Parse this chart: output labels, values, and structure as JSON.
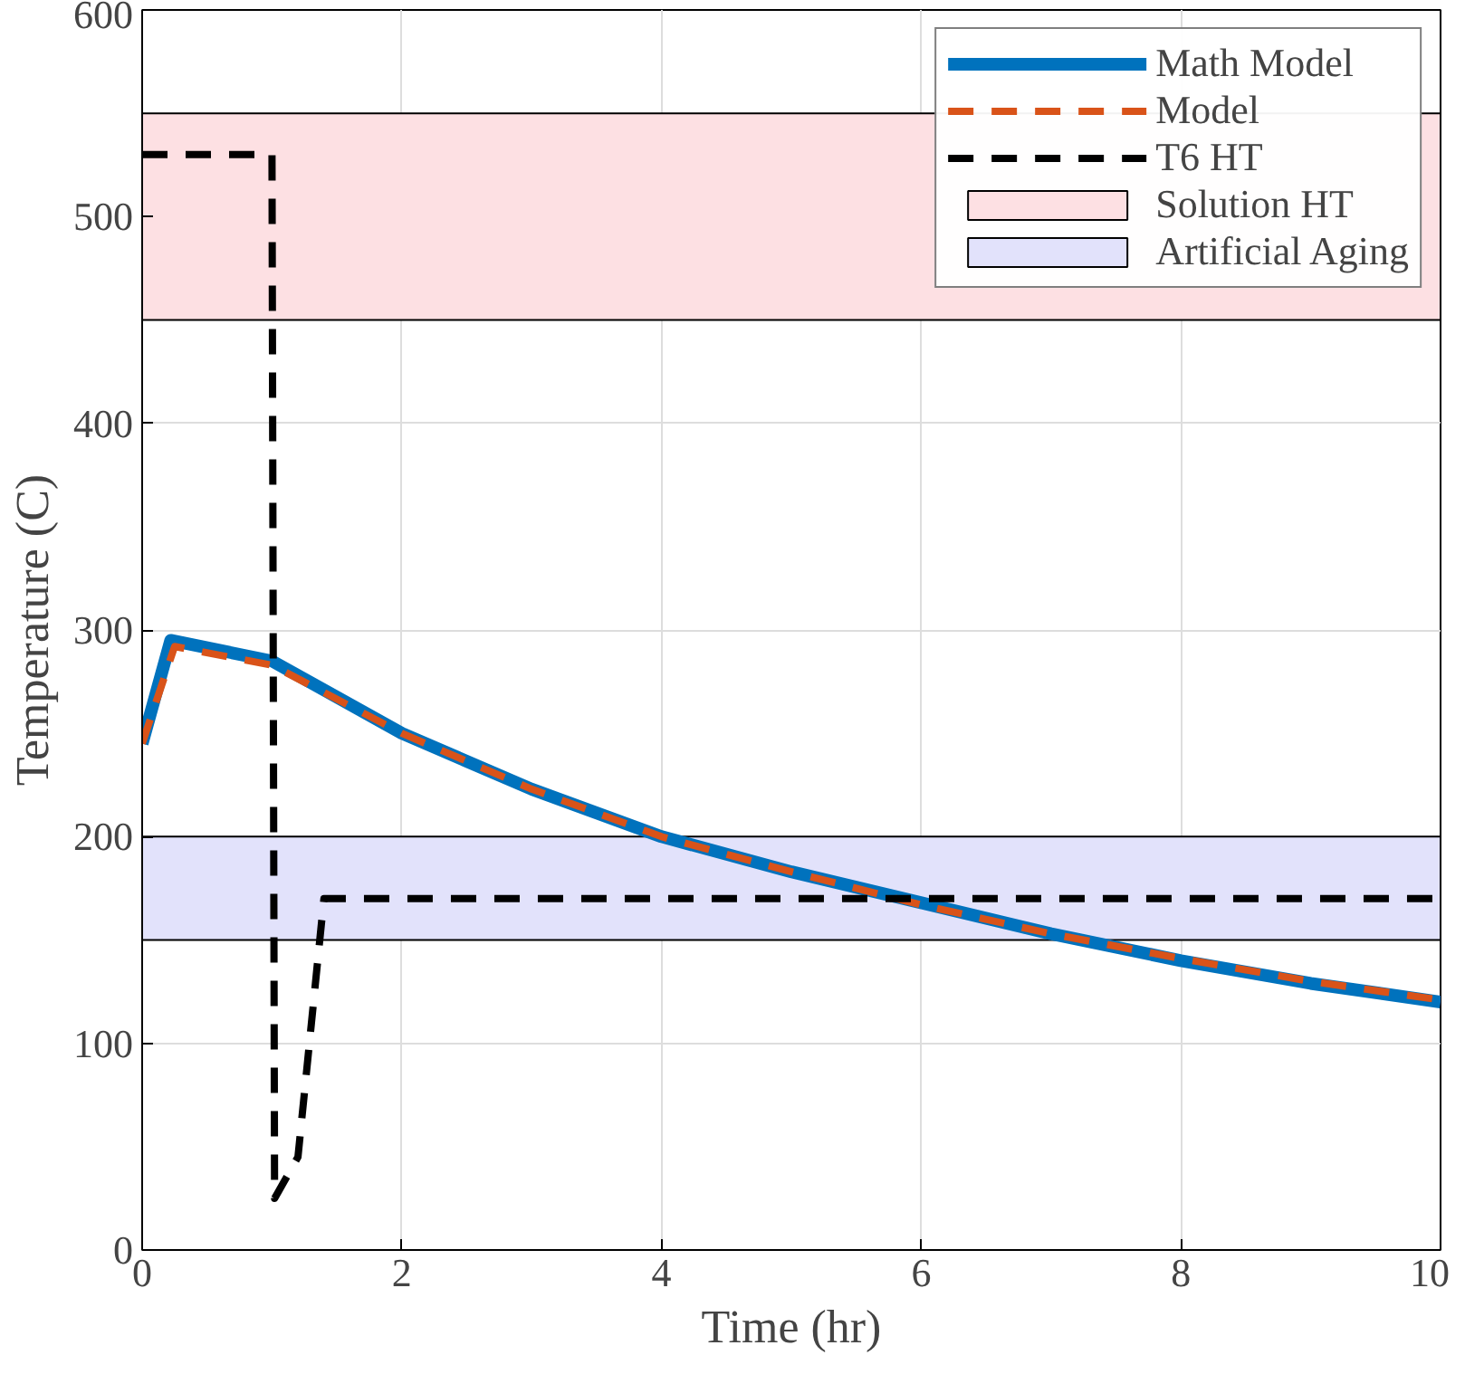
{
  "chart_data": {
    "type": "line",
    "xlabel": "Time (hr)",
    "ylabel": "Temperature (C)",
    "xlim": [
      0,
      10
    ],
    "ylim": [
      0,
      600
    ],
    "xticks": [
      0,
      2,
      4,
      6,
      8,
      10
    ],
    "yticks": [
      0,
      100,
      200,
      300,
      400,
      500,
      600
    ],
    "grid": true,
    "legend": "top right",
    "marker": "none",
    "series": [
      {
        "name": "Math Model",
        "color": "#0072bd",
        "line_style": "solid",
        "x": [
          0,
          0.22,
          1,
          2,
          3,
          4,
          5,
          6,
          7,
          8,
          9,
          10
        ],
        "values": [
          245,
          295,
          285,
          250,
          223,
          200,
          183,
          168,
          153,
          140,
          129,
          120
        ]
      },
      {
        "name": "Model",
        "color": "#d95319",
        "line_style": "dashed",
        "x": [
          0,
          0.25,
          1,
          2,
          3,
          4,
          5,
          6,
          7,
          8,
          9,
          10
        ],
        "values": [
          245,
          292,
          283,
          250,
          223,
          200,
          183,
          167,
          153,
          141,
          130,
          121
        ]
      },
      {
        "name": "T6 HT",
        "color": "#000000",
        "line_style": "dashed",
        "x": [
          0,
          1,
          1.02,
          1.2,
          1.4,
          10
        ],
        "values": [
          530,
          530,
          25,
          45,
          170,
          170
        ]
      }
    ],
    "bands": [
      {
        "axis": "y",
        "from": 450,
        "to": 550,
        "label": "Solution HT",
        "color": "#fde0e3"
      },
      {
        "axis": "y",
        "from": 150,
        "to": 200,
        "label": "Artificial Aging",
        "color": "#e2e2fb"
      }
    ]
  }
}
